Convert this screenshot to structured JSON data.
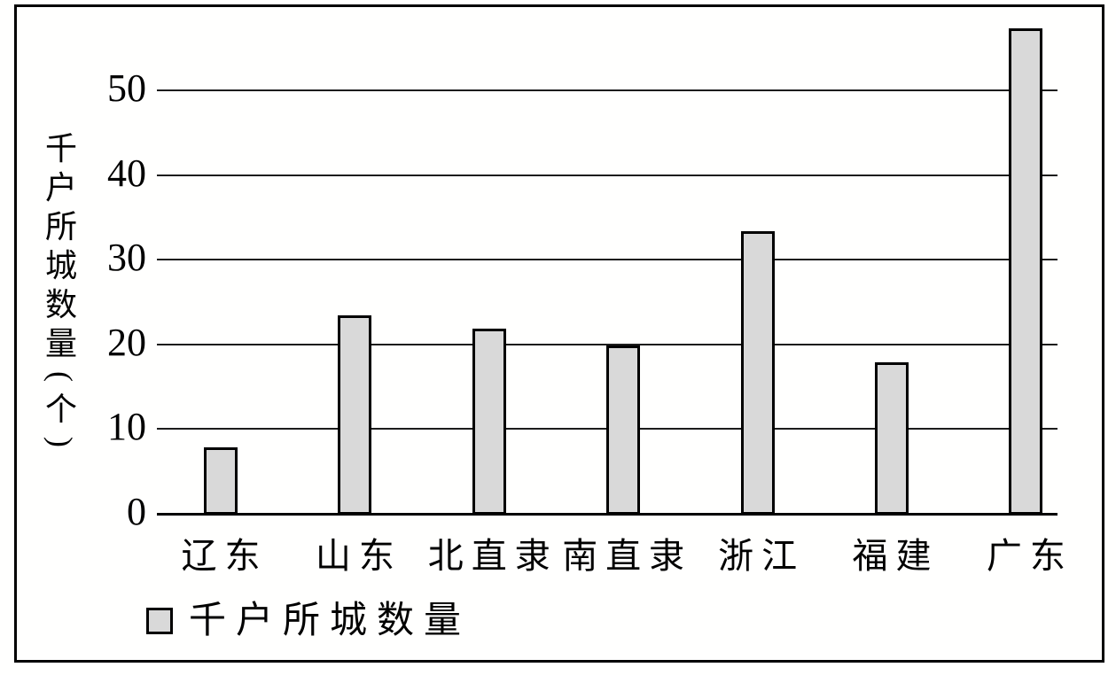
{
  "chart_data": {
    "type": "bar",
    "title": "",
    "xlabel": "",
    "ylabel": "千户所城数量(个)",
    "categories": [
      "辽东",
      "山东",
      "北直隶",
      "南直隶",
      "浙江",
      "福建",
      "广东"
    ],
    "values": [
      8,
      23.5,
      22,
      20,
      33.5,
      18,
      57.5
    ],
    "series_name": "千户所城数量",
    "yticks": [
      0,
      10,
      20,
      30,
      40,
      50
    ],
    "ylim": [
      0,
      60
    ],
    "grid": true,
    "legend_position": "bottom-left",
    "bar_fill": "#d9d9d9",
    "bar_border": "#000000"
  },
  "legend": {
    "label": "千户所城数量"
  },
  "y_axis": {
    "title_chars": [
      "千",
      "户",
      "所",
      "城",
      "数",
      "量",
      "(",
      "个",
      ")"
    ]
  }
}
